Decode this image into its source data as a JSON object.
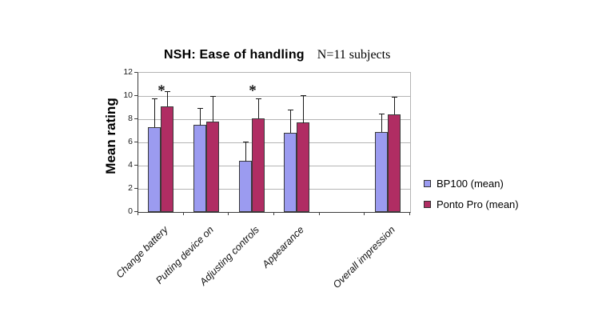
{
  "title": "NSH: Ease of handling",
  "subtitle": "N=11 subjects",
  "y_axis_label": "Mean rating",
  "legend": {
    "items": [
      {
        "label": "BP100 (mean)",
        "color": "#9b9bf0"
      },
      {
        "label": "Ponto Pro (mean)",
        "color": "#b02d63"
      }
    ]
  },
  "chart_data": {
    "type": "bar",
    "title": "NSH: Ease of handling",
    "subtitle": "N=11 subjects",
    "xlabel": "",
    "ylabel": "Mean rating",
    "ylim": [
      0,
      12
    ],
    "yticks": [
      0,
      2,
      4,
      6,
      8,
      10,
      12
    ],
    "grid": true,
    "legend_position": "right",
    "categories": [
      "Change battery",
      "Putting device on",
      "Adjusting controls",
      "Appearance",
      "Overall impression"
    ],
    "category_slots": [
      0,
      1,
      2,
      3,
      5
    ],
    "total_slots": 6,
    "series": [
      {
        "name": "BP100 (mean)",
        "color": "#9b9bf0",
        "values": [
          7.3,
          7.5,
          4.4,
          6.8,
          6.9
        ],
        "error_up": [
          2.5,
          1.5,
          1.7,
          2.0,
          1.6
        ]
      },
      {
        "name": "Ponto Pro (mean)",
        "color": "#b02d63",
        "values": [
          9.1,
          7.8,
          8.1,
          7.7,
          8.4
        ],
        "error_up": [
          1.3,
          2.2,
          1.7,
          2.4,
          1.5
        ]
      }
    ],
    "annotations": [
      {
        "symbol": "*",
        "category_index": 0,
        "y": 10.8
      },
      {
        "symbol": "*",
        "category_index": 2,
        "y": 10.8
      }
    ]
  }
}
